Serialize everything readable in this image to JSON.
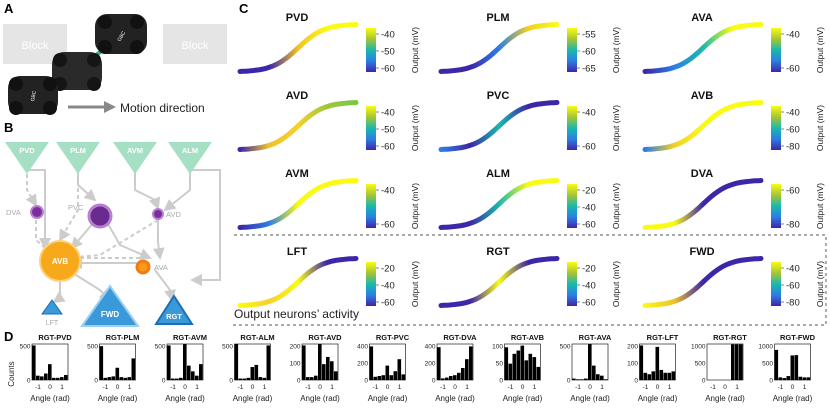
{
  "panels": {
    "a": "A",
    "b": "B",
    "c": "C",
    "d": "D"
  },
  "panel_a": {
    "blocks": [
      "Block",
      "Block"
    ],
    "robot_label": "GBC",
    "arrow_label": "Motion direction"
  },
  "panel_b": {
    "sensors": [
      "PVD",
      "PLM",
      "AVM",
      "ALM"
    ],
    "inter": [
      "DVA",
      "PVC",
      "AVD",
      "AVB",
      "AVA"
    ],
    "motors": [
      "LFT",
      "FWD",
      "RGT"
    ],
    "colors": {
      "sensor": "#a5dfc4",
      "inter_purple": "#7b2f9e",
      "avb": "#f7a81b",
      "ava": "#f59a1a",
      "motor": "#3a9ad9"
    }
  },
  "panel_c": {
    "footer": "Output neurons’ activity",
    "ylabel": "Output (mV)",
    "neurons": [
      {
        "name": "PVD",
        "ticks": [
          "-40",
          "-50",
          "-60"
        ]
      },
      {
        "name": "PLM",
        "ticks": [
          "-55",
          "-60",
          "-65"
        ]
      },
      {
        "name": "AVA",
        "ticks": [
          "-40",
          "-60"
        ]
      },
      {
        "name": "AVD",
        "ticks": [
          "-40",
          "-50",
          "-60"
        ]
      },
      {
        "name": "PVC",
        "ticks": [
          "-40",
          "-60"
        ]
      },
      {
        "name": "AVB",
        "ticks": [
          "-40",
          "-60",
          "-80"
        ]
      },
      {
        "name": "AVM",
        "ticks": [
          "-40",
          "-60"
        ]
      },
      {
        "name": "ALM",
        "ticks": [
          "-20",
          "-40",
          "-60"
        ]
      },
      {
        "name": "DVA",
        "ticks": [
          "-60",
          "-80"
        ]
      },
      {
        "name": "LFT",
        "ticks": [
          "-20",
          "-40",
          "-60"
        ]
      },
      {
        "name": "RGT",
        "ticks": [
          "-20",
          "-40",
          "-60"
        ]
      },
      {
        "name": "FWD",
        "ticks": [
          "-40",
          "-60",
          "-80"
        ]
      }
    ]
  },
  "panel_d": {
    "ylabel": "Counts",
    "xlabel": "Angle (rad)",
    "xticks": [
      "-1",
      "0",
      "1"
    ],
    "histograms": [
      {
        "title": "RGT-PVD",
        "ticks": [
          "500",
          "0"
        ],
        "ymax": 500,
        "values": [
          480,
          60,
          50,
          90,
          220,
          30,
          30,
          40,
          70
        ]
      },
      {
        "title": "RGT-PLM",
        "ticks": [
          "500",
          "0"
        ],
        "ymax": 500,
        "values": [
          470,
          30,
          40,
          50,
          170,
          40,
          30,
          40,
          300
        ]
      },
      {
        "title": "RGT-AVM",
        "ticks": [
          "500",
          "0"
        ],
        "ymax": 500,
        "values": [
          480,
          20,
          20,
          30,
          500,
          200,
          120,
          60,
          220
        ]
      },
      {
        "title": "RGT-ALM",
        "ticks": [
          "500",
          "0"
        ],
        "ymax": 500,
        "values": [
          500,
          20,
          20,
          30,
          180,
          210,
          40,
          30,
          480
        ]
      },
      {
        "title": "RGT-AVD",
        "ticks": [
          "200",
          "100",
          "0"
        ],
        "ymax": 250,
        "values": [
          240,
          20,
          20,
          30,
          250,
          110,
          160,
          130,
          60
        ]
      },
      {
        "title": "RGT-PVC",
        "ticks": [
          "400",
          "200",
          "0"
        ],
        "ymax": 450,
        "values": [
          420,
          40,
          50,
          60,
          180,
          60,
          110,
          260,
          70
        ]
      },
      {
        "title": "RGT-DVA",
        "ticks": [
          "400",
          "200",
          "0"
        ],
        "ymax": 450,
        "values": [
          410,
          20,
          30,
          50,
          60,
          90,
          150,
          260,
          420
        ]
      },
      {
        "title": "RGT-AVB",
        "ticks": [
          "100",
          "50",
          "0"
        ],
        "ymax": 110,
        "values": [
          100,
          50,
          80,
          90,
          105,
          60,
          80,
          70,
          40
        ]
      },
      {
        "title": "RGT-AVA",
        "ticks": [
          "500",
          "0"
        ],
        "ymax": 500,
        "values": [
          20,
          10,
          10,
          20,
          500,
          200,
          80,
          60,
          10
        ]
      },
      {
        "title": "RGT-LFT",
        "ticks": [
          "200",
          "100",
          "0"
        ],
        "ymax": 250,
        "values": [
          240,
          50,
          40,
          60,
          230,
          70,
          50,
          50,
          60
        ]
      },
      {
        "title": "RGT-RGT",
        "ticks": [
          "1000",
          "500",
          "0"
        ],
        "ymax": 1100,
        "values": [
          0,
          0,
          0,
          0,
          0,
          0,
          1090,
          1090,
          1090
        ]
      },
      {
        "title": "RGT-FWD",
        "ticks": [
          "1000",
          "500",
          "0"
        ],
        "ymax": 1100,
        "values": [
          920,
          80,
          60,
          120,
          750,
          760,
          100,
          80,
          80
        ]
      }
    ]
  }
}
